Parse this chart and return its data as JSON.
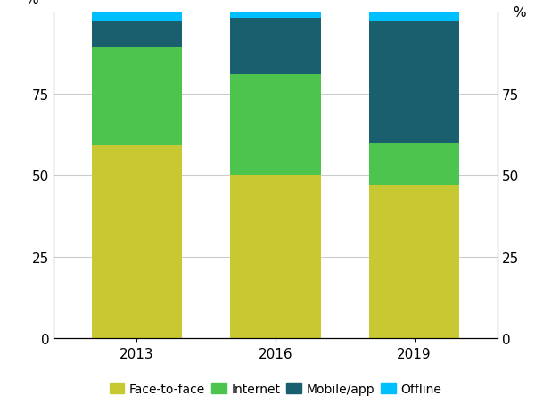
{
  "categories": [
    "2013",
    "2016",
    "2019"
  ],
  "face_to_face": [
    59,
    50,
    47
  ],
  "internet": [
    30,
    31,
    13
  ],
  "mobile_app": [
    8,
    17,
    37
  ],
  "offline": [
    3,
    2,
    3
  ],
  "colors": {
    "face_to_face": "#c8c832",
    "internet": "#4dc44d",
    "mobile_app": "#1a5f6e",
    "offline": "#00bfff"
  },
  "ylim": [
    0,
    100
  ],
  "yticks": [
    0,
    25,
    50,
    75
  ],
  "ylabel": "%",
  "bar_width": 0.65,
  "legend_labels": [
    "Face-to-face",
    "Internet",
    "Mobile/app",
    "Offline"
  ],
  "background_color": "#ffffff",
  "grid_color": "#cccccc"
}
